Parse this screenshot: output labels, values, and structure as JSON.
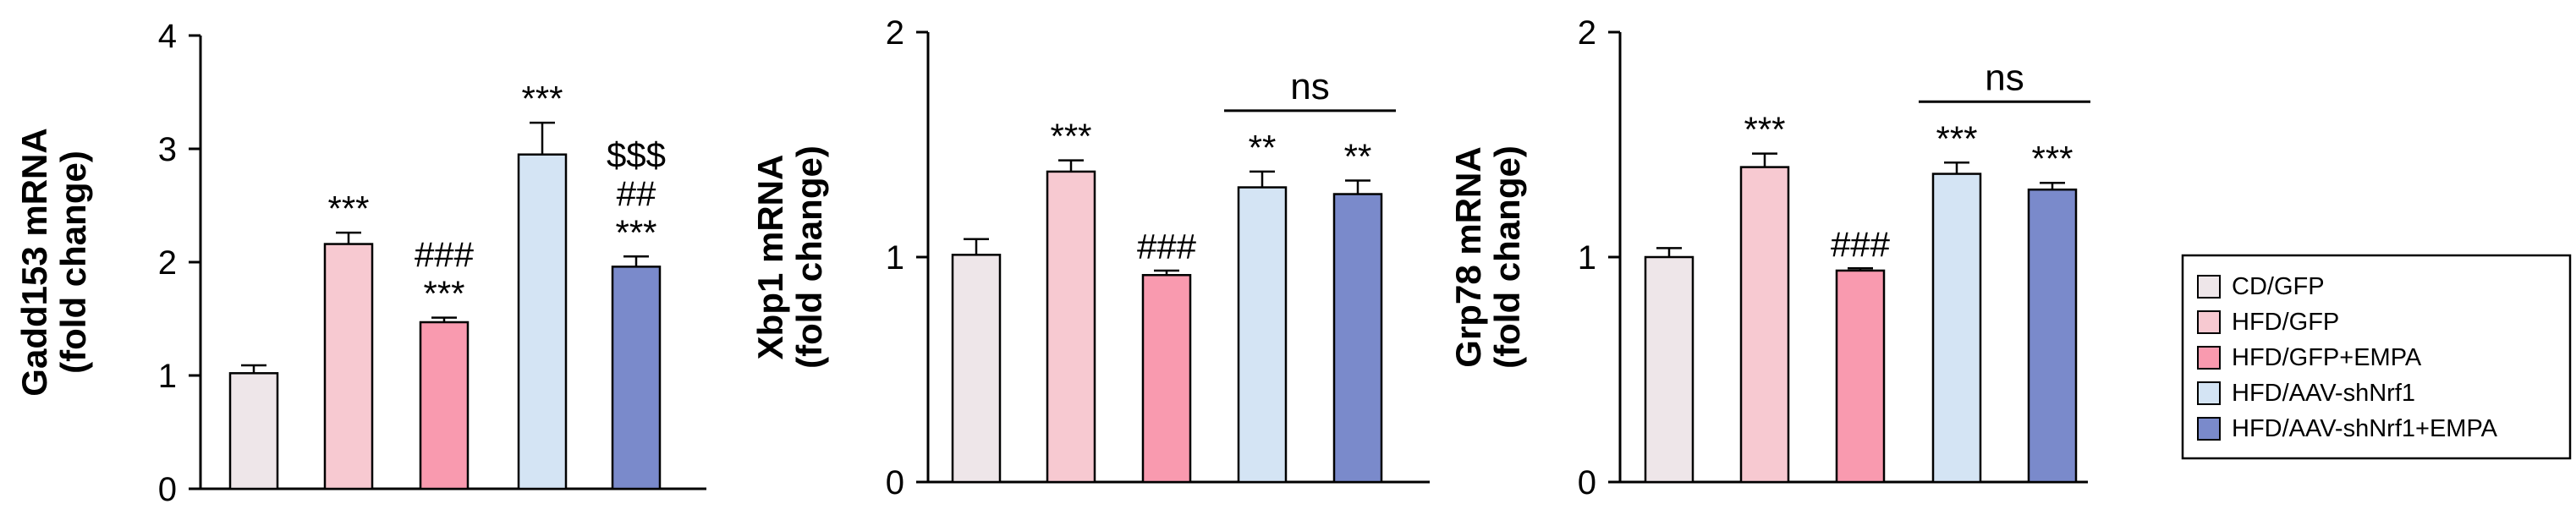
{
  "chart_data": [
    {
      "type": "bar",
      "ylabel_line1": "Gadd153 mRNA",
      "ylabel_line2": "(fold change)",
      "ylim": [
        0,
        4
      ],
      "yticks": [
        "0",
        "1",
        "2",
        "3",
        "4"
      ],
      "groups": [
        "CD/GFP",
        "HFD/GFP",
        "HFD/GFP+EMPA",
        "HFD/AAV-shNrf1",
        "HFD/AAV-shNrf1+EMPA"
      ],
      "values": [
        1.02,
        2.16,
        1.47,
        2.95,
        1.96
      ],
      "errors": [
        0.07,
        0.1,
        0.04,
        0.28,
        0.09
      ],
      "annotations": [
        [],
        [
          "***"
        ],
        [
          "###",
          "***"
        ],
        [
          "***"
        ],
        [
          "$$$",
          "##",
          "***"
        ]
      ],
      "brackets": []
    },
    {
      "type": "bar",
      "ylabel_line1": "Xbp1 mRNA",
      "ylabel_line2": "(fold change)",
      "ylim": [
        0,
        2
      ],
      "yticks": [
        "0",
        "1",
        "2"
      ],
      "groups": [
        "CD/GFP",
        "HFD/GFP",
        "HFD/GFP+EMPA",
        "HFD/AAV-shNrf1",
        "HFD/AAV-shNrf1+EMPA"
      ],
      "values": [
        1.01,
        1.38,
        0.92,
        1.31,
        1.28
      ],
      "errors": [
        0.07,
        0.05,
        0.02,
        0.07,
        0.06
      ],
      "annotations": [
        [],
        [
          "***"
        ],
        [
          "###"
        ],
        [
          "**"
        ],
        [
          "**"
        ]
      ],
      "brackets": [
        {
          "from": 3,
          "to": 4,
          "label": "ns"
        }
      ]
    },
    {
      "type": "bar",
      "ylabel_line1": "Grp78 mRNA",
      "ylabel_line2": "(fold change)",
      "ylim": [
        0,
        2
      ],
      "yticks": [
        "0",
        "1",
        "2"
      ],
      "groups": [
        "CD/GFP",
        "HFD/GFP",
        "HFD/GFP+EMPA",
        "HFD/AAV-shNrf1",
        "HFD/AAV-shNrf1+EMPA"
      ],
      "values": [
        1.0,
        1.4,
        0.94,
        1.37,
        1.3
      ],
      "errors": [
        0.04,
        0.06,
        0.01,
        0.05,
        0.03
      ],
      "annotations": [
        [],
        [
          "***"
        ],
        [
          "###"
        ],
        [
          "***"
        ],
        [
          "***"
        ]
      ],
      "brackets": [
        {
          "from": 3,
          "to": 4,
          "label": "ns"
        }
      ]
    }
  ],
  "legend": {
    "position": "right",
    "items": [
      {
        "label": "CD/GFP",
        "color": "#EEE6E9"
      },
      {
        "label": "HFD/GFP",
        "color": "#F7C9D1"
      },
      {
        "label": "HFD/GFP+EMPA",
        "color": "#F99AAF"
      },
      {
        "label": "HFD/AAV-shNrf1",
        "color": "#D4E4F4"
      },
      {
        "label": "HFD/AAV-shNrf1+EMPA",
        "color": "#7A8ACB"
      }
    ]
  }
}
